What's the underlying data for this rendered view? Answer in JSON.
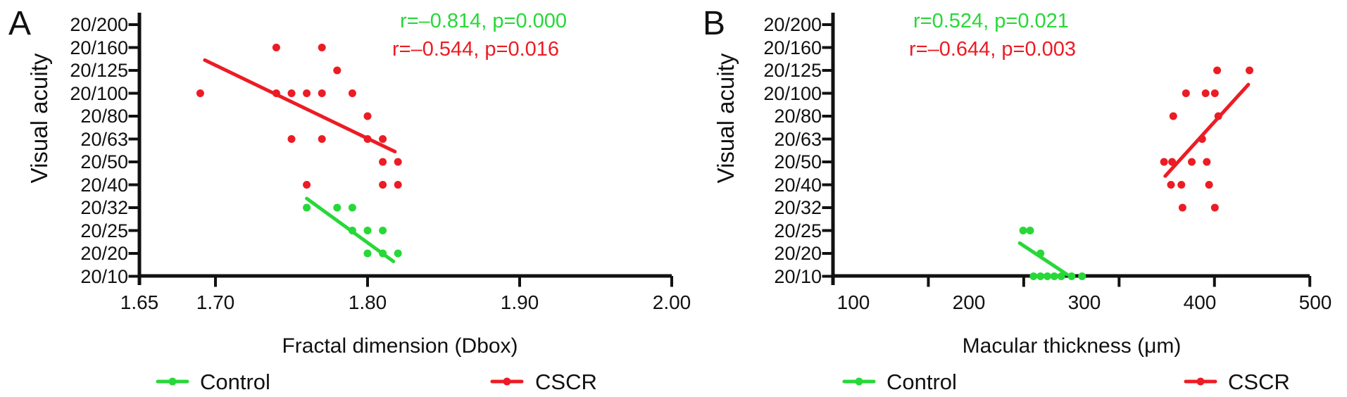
{
  "figure": {
    "background_color": "#ffffff",
    "text_color": "#111111",
    "legend": {
      "control_label": "Control",
      "cscr_label": "CSCR",
      "control_color": "#27d838",
      "cscr_color": "#ec1c24"
    }
  },
  "chart_data": [
    {
      "type": "scatter",
      "panel_label": "A",
      "xlabel": "Fractal dimension (Dbox)",
      "ylabel": "Visual acuity",
      "xlim": [
        1.65,
        2.0
      ],
      "x_ticks": [
        {
          "value": 1.65,
          "label": "1.65"
        },
        {
          "value": 1.7,
          "label": "1.70"
        },
        {
          "value": 1.8,
          "label": "1.80"
        },
        {
          "value": 1.9,
          "label": "1.90"
        },
        {
          "value": 2.0,
          "label": "2.00"
        }
      ],
      "y_categories": [
        "20/200",
        "20/160",
        "20/125",
        "20/100",
        "20/80",
        "20/63",
        "20/50",
        "20/40",
        "20/32",
        "20/25",
        "20/20",
        "20/10"
      ],
      "grid": false,
      "annotations": [
        {
          "text": "r=–0.814, p=0.000",
          "series": "Control",
          "color": "#27d838"
        },
        {
          "text": "r=–0.544, p=0.016",
          "series": "CSCR",
          "color": "#ec1c24"
        }
      ],
      "series": [
        {
          "name": "CSCR",
          "color": "#ec1c24",
          "points": [
            [
              1.74,
              "20/160"
            ],
            [
              1.77,
              "20/160"
            ],
            [
              1.78,
              "20/125"
            ],
            [
              1.69,
              "20/100"
            ],
            [
              1.74,
              "20/100"
            ],
            [
              1.75,
              "20/100"
            ],
            [
              1.76,
              "20/100"
            ],
            [
              1.77,
              "20/100"
            ],
            [
              1.79,
              "20/100"
            ],
            [
              1.8,
              "20/80"
            ],
            [
              1.75,
              "20/63"
            ],
            [
              1.77,
              "20/63"
            ],
            [
              1.8,
              "20/63"
            ],
            [
              1.81,
              "20/63"
            ],
            [
              1.81,
              "20/50"
            ],
            [
              1.82,
              "20/50"
            ],
            [
              1.76,
              "20/40"
            ],
            [
              1.81,
              "20/40"
            ],
            [
              1.82,
              "20/40"
            ]
          ],
          "trend_line": {
            "x1": 1.693,
            "y1_index": 1.55,
            "x2": 1.818,
            "y2_index": 5.55
          }
        },
        {
          "name": "Control",
          "color": "#27d838",
          "points": [
            [
              1.76,
              "20/32"
            ],
            [
              1.78,
              "20/32"
            ],
            [
              1.79,
              "20/32"
            ],
            [
              1.79,
              "20/25"
            ],
            [
              1.8,
              "20/25"
            ],
            [
              1.81,
              "20/25"
            ],
            [
              1.8,
              "20/20"
            ],
            [
              1.81,
              "20/20"
            ],
            [
              1.82,
              "20/20"
            ]
          ],
          "trend_line": {
            "x1": 1.76,
            "y1_index": 7.6,
            "x2": 1.817,
            "y2_index": 10.35
          }
        }
      ]
    },
    {
      "type": "scatter",
      "panel_label": "B",
      "xlabel": "Macular thickness (μm)",
      "ylabel": "Visual acuity",
      "xlim": [
        0,
        500
      ],
      "x_ticks": [
        {
          "value": 100,
          "label": "100"
        },
        {
          "value": 200,
          "label": "200"
        },
        {
          "value": 300,
          "label": "300"
        },
        {
          "value": 400,
          "label": "400"
        },
        {
          "value": 500,
          "label": "500"
        }
      ],
      "y_categories": [
        "20/200",
        "20/160",
        "20/125",
        "20/100",
        "20/80",
        "20/63",
        "20/50",
        "20/40",
        "20/32",
        "20/25",
        "20/20",
        "20/10"
      ],
      "grid": false,
      "annotations": [
        {
          "text": "r=0.524, p=0.021",
          "series": "Control",
          "color": "#27d838"
        },
        {
          "text": "r=–0.644, p=0.003",
          "series": "CSCR",
          "color": "#ec1c24"
        }
      ],
      "series": [
        {
          "name": "CSCR",
          "color": "#ec1c24",
          "points": [
            [
              415,
              "20/125"
            ],
            [
              443,
              "20/125"
            ],
            [
              388,
              "20/100"
            ],
            [
              405,
              "20/100"
            ],
            [
              413,
              "20/100"
            ],
            [
              377,
              "20/80"
            ],
            [
              416,
              "20/80"
            ],
            [
              402,
              "20/63"
            ],
            [
              369,
              "20/50"
            ],
            [
              376,
              "20/50"
            ],
            [
              393,
              "20/50"
            ],
            [
              406,
              "20/50"
            ],
            [
              375,
              "20/40"
            ],
            [
              384,
              "20/40"
            ],
            [
              408,
              "20/40"
            ],
            [
              385,
              "20/32"
            ],
            [
              413,
              "20/32"
            ]
          ],
          "trend_line": {
            "x1": 370,
            "y1_index": 6.62,
            "x2": 442,
            "y2_index": 2.62
          }
        },
        {
          "name": "Control",
          "color": "#27d838",
          "points": [
            [
              247,
              "20/25"
            ],
            [
              253,
              "20/25"
            ],
            [
              262,
              "20/20"
            ],
            [
              256,
              "20/10"
            ],
            [
              262,
              "20/10"
            ],
            [
              268,
              "20/10"
            ],
            [
              274,
              "20/10"
            ],
            [
              280,
              "20/10"
            ],
            [
              289,
              "20/10"
            ],
            [
              298,
              "20/10"
            ]
          ],
          "trend_line": {
            "x1": 244,
            "y1_index": 9.55,
            "x2": 285,
            "y2_index": 10.92
          }
        }
      ]
    }
  ]
}
